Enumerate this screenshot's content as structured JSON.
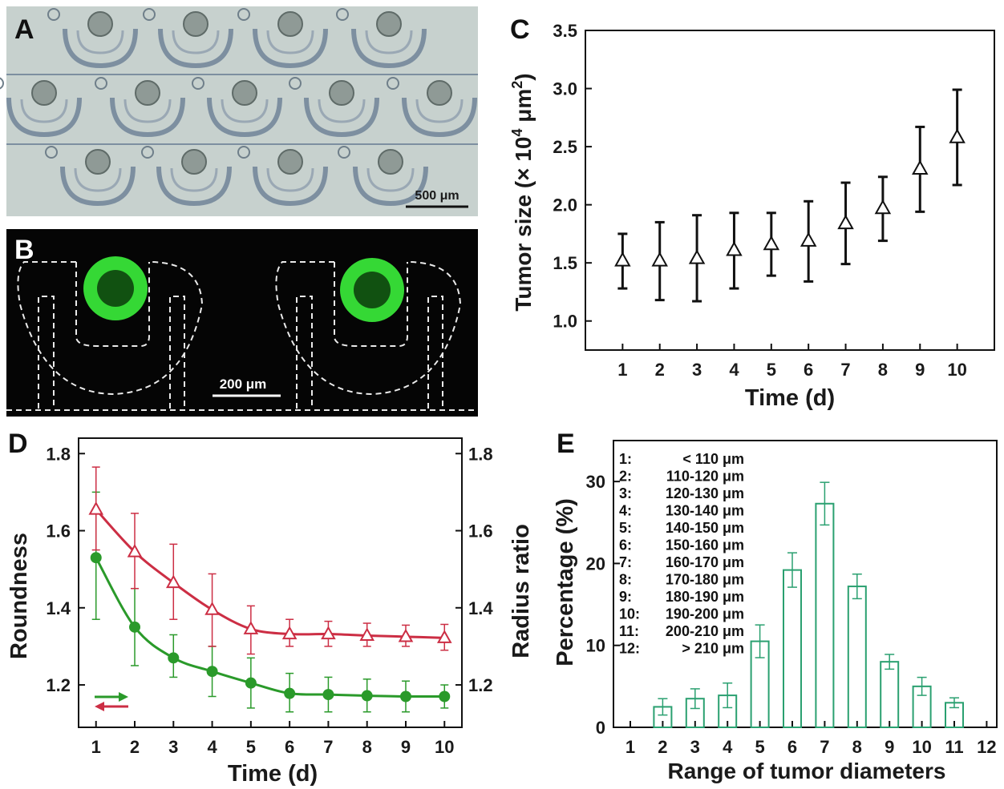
{
  "panels": {
    "A": {
      "letter": "A",
      "scale_label": "500 μm"
    },
    "B": {
      "letter": "B",
      "scale_label": "200 μm"
    }
  },
  "colors": {
    "chart_c": "#111111",
    "roundness": "#2a9a2a",
    "radius_ratio": "#cc2e44",
    "chart_e": "#2aa070",
    "micrograph_bg": "#c7d1ce",
    "fluor_bg": "#050505",
    "spheroid": "#35d835"
  },
  "chart_data": [
    {
      "panel": "C",
      "type": "scatter",
      "xlabel": "Time (d)",
      "ylabel": "Tumor size (× 10",
      "ylabel_exp": "4",
      "ylabel_unit": " μm",
      "ylabel_unit_exp": "2",
      "ylabel_end": ")",
      "x": [
        1,
        2,
        3,
        4,
        5,
        6,
        7,
        8,
        9,
        10
      ],
      "y": [
        1.52,
        1.52,
        1.54,
        1.61,
        1.66,
        1.69,
        1.84,
        1.97,
        2.31,
        2.58
      ],
      "err_low": [
        1.28,
        1.18,
        1.17,
        1.28,
        1.39,
        1.34,
        1.49,
        1.69,
        1.94,
        2.17
      ],
      "err_high": [
        1.75,
        1.85,
        1.91,
        1.93,
        1.93,
        2.03,
        2.19,
        2.24,
        2.67,
        2.99
      ],
      "xticks": [
        "1",
        "2",
        "3",
        "4",
        "5",
        "6",
        "7",
        "8",
        "9",
        "10"
      ],
      "yticks": [
        "1.0",
        "1.5",
        "2.0",
        "2.5",
        "3.0",
        "3.5"
      ],
      "xlim": [
        0,
        11
      ],
      "ylim": [
        0.75,
        3.5
      ],
      "marker": "open-triangle"
    },
    {
      "panel": "D",
      "type": "line",
      "xlabel": "Time (d)",
      "ylabel_left": "Roundness",
      "ylabel_right": "Radius ratio",
      "x": [
        1,
        2,
        3,
        4,
        5,
        6,
        7,
        8,
        9,
        10
      ],
      "xticks": [
        "1",
        "2",
        "3",
        "4",
        "5",
        "6",
        "7",
        "8",
        "9",
        "10"
      ],
      "yticks_left": [
        "1.2",
        "1.4",
        "1.6",
        "1.8"
      ],
      "yticks_right": [
        "1.2",
        "1.4",
        "1.6",
        "1.8"
      ],
      "xlim": [
        0.55,
        10.45
      ],
      "ylim": [
        1.09,
        1.84
      ],
      "series": [
        {
          "axis": "left",
          "marker": "filled-circle",
          "color": "#2a9a2a",
          "values": [
            1.53,
            1.35,
            1.27,
            1.235,
            1.205,
            1.178,
            1.175,
            1.172,
            1.17,
            1.17
          ],
          "err_low": [
            1.37,
            1.25,
            1.22,
            1.17,
            1.14,
            1.13,
            1.13,
            1.13,
            1.13,
            1.14
          ],
          "err_high": [
            1.7,
            1.45,
            1.33,
            1.3,
            1.27,
            1.23,
            1.22,
            1.215,
            1.21,
            1.2
          ]
        },
        {
          "axis": "right",
          "marker": "open-triangle",
          "color": "#cc2e44",
          "values": [
            1.655,
            1.545,
            1.465,
            1.395,
            1.345,
            1.332,
            1.332,
            1.328,
            1.325,
            1.322
          ],
          "err_low": [
            1.55,
            1.45,
            1.37,
            1.3,
            1.28,
            1.3,
            1.3,
            1.3,
            1.3,
            1.29
          ],
          "err_high": [
            1.765,
            1.645,
            1.565,
            1.488,
            1.405,
            1.37,
            1.365,
            1.36,
            1.355,
            1.357
          ]
        }
      ]
    },
    {
      "panel": "E",
      "type": "bar",
      "xlabel": "Range of tumor diameters",
      "ylabel": "Percentage (%)",
      "categories": [
        "1",
        "2",
        "3",
        "4",
        "5",
        "6",
        "7",
        "8",
        "9",
        "10",
        "11",
        "12"
      ],
      "values": [
        0,
        2.5,
        3.5,
        3.9,
        10.5,
        19.2,
        27.3,
        17.2,
        8.0,
        5.0,
        3.0,
        0
      ],
      "err": [
        0,
        1.0,
        1.2,
        1.5,
        2.0,
        2.1,
        2.6,
        1.5,
        0.9,
        1.1,
        0.6,
        0
      ],
      "yticks": [
        "0",
        "10",
        "20",
        "30"
      ],
      "ylim": [
        0,
        35
      ],
      "legend": [
        {
          "num": "1:",
          "range": "< 110 μm"
        },
        {
          "num": "2:",
          "range": "110-120 μm"
        },
        {
          "num": "3:",
          "range": "120-130 μm"
        },
        {
          "num": "4:",
          "range": "130-140 μm"
        },
        {
          "num": "5:",
          "range": "140-150 μm"
        },
        {
          "num": "6:",
          "range": "150-160 μm"
        },
        {
          "num": "7:",
          "range": "160-170 μm"
        },
        {
          "num": "8:",
          "range": "170-180 μm"
        },
        {
          "num": "9:",
          "range": "180-190 μm"
        },
        {
          "num": "10:",
          "range": "190-200 μm"
        },
        {
          "num": "11:",
          "range": "200-210 μm"
        },
        {
          "num": "12:",
          "range": "> 210 μm"
        }
      ]
    }
  ]
}
